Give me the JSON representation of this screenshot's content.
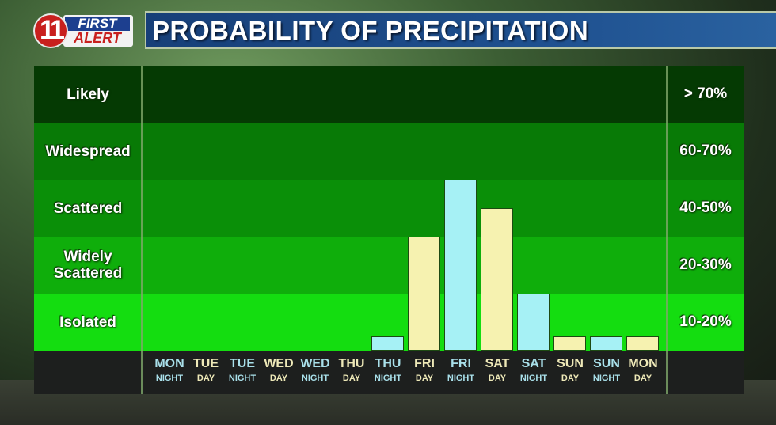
{
  "header": {
    "logo": {
      "number": "11",
      "line1": "FIRST",
      "line2": "ALERT"
    },
    "title": "PROBABILITY OF PRECIPITATION"
  },
  "colors": {
    "day_bar": "#f6f2b0",
    "night_bar": "#a6f1f5",
    "day_label": "#eee9b8",
    "night_label": "#a9e0ea",
    "title_bar": "#1d4d8a",
    "footer": "#1d1f1e",
    "bands": [
      "#053a03",
      "#087a06",
      "#0a8f08",
      "#0fae0b",
      "#14dd10"
    ]
  },
  "bands": [
    {
      "label": "Likely",
      "range": "> 70%"
    },
    {
      "label": "Widespread",
      "range": "60-70%"
    },
    {
      "label": "Scattered",
      "range": "40-50%"
    },
    {
      "label": "Widely Scattered",
      "range": "20-30%"
    },
    {
      "label": "Isolated",
      "range": "10-20%"
    }
  ],
  "periods": [
    {
      "day": "MON",
      "part": "NIGHT"
    },
    {
      "day": "TUE",
      "part": "DAY"
    },
    {
      "day": "TUE",
      "part": "NIGHT"
    },
    {
      "day": "WED",
      "part": "DAY"
    },
    {
      "day": "WED",
      "part": "NIGHT"
    },
    {
      "day": "THU",
      "part": "DAY"
    },
    {
      "day": "THU",
      "part": "NIGHT"
    },
    {
      "day": "FRI",
      "part": "DAY"
    },
    {
      "day": "FRI",
      "part": "NIGHT"
    },
    {
      "day": "SAT",
      "part": "DAY"
    },
    {
      "day": "SAT",
      "part": "NIGHT"
    },
    {
      "day": "SUN",
      "part": "DAY"
    },
    {
      "day": "SUN",
      "part": "NIGHT"
    },
    {
      "day": "MON",
      "part": "DAY"
    }
  ],
  "chart_data": {
    "type": "bar",
    "title": "PROBABILITY OF PRECIPITATION",
    "categories": [
      "MON NIGHT",
      "TUE DAY",
      "TUE NIGHT",
      "WED DAY",
      "WED NIGHT",
      "THU DAY",
      "THU NIGHT",
      "FRI DAY",
      "FRI NIGHT",
      "SAT DAY",
      "SAT NIGHT",
      "SUN DAY",
      "SUN NIGHT",
      "MON DAY"
    ],
    "values": [
      0,
      0,
      0,
      0,
      0,
      0,
      5,
      40,
      60,
      50,
      20,
      5,
      5,
      5
    ],
    "y_scale_note": "Each band = 20 percentage-point bucket; values estimated from bar tops relative to band boundaries",
    "y_bands": [
      "Isolated 10-20%",
      "Widely Scattered 20-30%",
      "Scattered 40-50%",
      "Widespread 60-70%",
      "Likely > 70%"
    ],
    "ylim": [
      0,
      100
    ],
    "bar_colors": "day=pale yellow, night=light cyan",
    "xlabel": "",
    "ylabel": "",
    "grid": false,
    "legend": "none"
  }
}
